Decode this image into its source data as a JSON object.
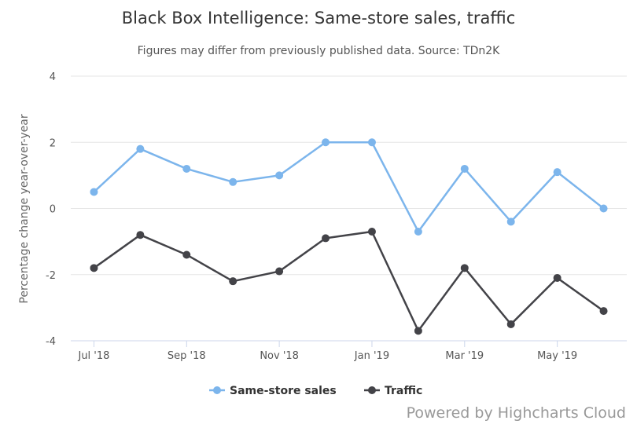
{
  "chart_data": {
    "type": "line",
    "title": "Black Box Intelligence: Same-store sales, traffic",
    "subtitle": "Figures may differ from previously published data. Source: TDn2K",
    "ylabel": "Percentage change year-over-year",
    "xlabel": "",
    "ylim": [
      -4,
      4
    ],
    "yticks": [
      4,
      2,
      0,
      -2,
      -4
    ],
    "x": [
      "Jul '18",
      "Aug '18",
      "Sep '18",
      "Oct '18",
      "Nov '18",
      "Dec '18",
      "Jan '19",
      "Feb '19",
      "Mar '19",
      "Apr '19",
      "May '19",
      "Jun '19"
    ],
    "xtick_labels": [
      "Jul '18",
      "Sep '18",
      "Nov '18",
      "Jan '19",
      "Mar '19",
      "May '19"
    ],
    "series": [
      {
        "name": "Same-store sales",
        "color": "#7cb5ec",
        "values": [
          0.5,
          1.8,
          1.2,
          0.8,
          1.0,
          2.0,
          2.0,
          -0.7,
          1.2,
          -0.4,
          1.1,
          0.0
        ]
      },
      {
        "name": "Traffic",
        "color": "#434348",
        "values": [
          -1.8,
          -0.8,
          -1.4,
          -2.2,
          -1.9,
          -0.9,
          -0.7,
          -3.7,
          -1.8,
          -3.5,
          -2.1,
          -3.1
        ]
      }
    ],
    "legend_position": "bottom-center",
    "grid": true
  },
  "credit": "Powered by Highcharts Cloud"
}
